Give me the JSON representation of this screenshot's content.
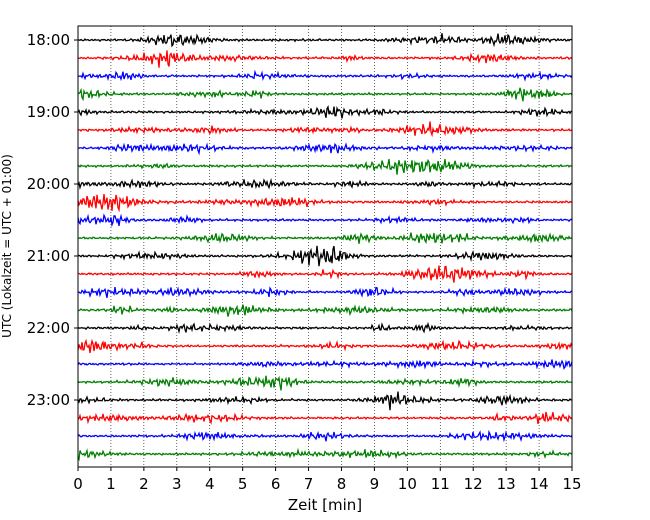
{
  "chart_data": {
    "type": "line",
    "title": "",
    "xlabel": "Zeit  [min]",
    "ylabel": "UTC (Lokalzeit = UTC + 01:00)",
    "xlim": [
      0,
      15
    ],
    "x_ticks": [
      "0",
      "1",
      "2",
      "3",
      "4",
      "5",
      "6",
      "7",
      "8",
      "9",
      "10",
      "11",
      "12",
      "13",
      "14",
      "15"
    ],
    "y_tick_labels": [
      "18:00",
      "19:00",
      "20:00",
      "21:00",
      "22:00",
      "23:00"
    ],
    "trace_interval_minutes": 15,
    "trace_count": 24,
    "trace_colors": [
      "#000000",
      "#ff0000",
      "#0000ff",
      "#007f00"
    ],
    "grid": {
      "vertical": true,
      "style": "dotted"
    },
    "series": [
      {
        "start": "18:00",
        "color": "#000000"
      },
      {
        "start": "18:15",
        "color": "#ff0000"
      },
      {
        "start": "18:30",
        "color": "#0000ff"
      },
      {
        "start": "18:45",
        "color": "#007f00"
      },
      {
        "start": "19:00",
        "color": "#000000"
      },
      {
        "start": "19:15",
        "color": "#ff0000"
      },
      {
        "start": "19:30",
        "color": "#0000ff"
      },
      {
        "start": "19:45",
        "color": "#007f00"
      },
      {
        "start": "20:00",
        "color": "#000000"
      },
      {
        "start": "20:15",
        "color": "#ff0000"
      },
      {
        "start": "20:30",
        "color": "#0000ff"
      },
      {
        "start": "20:45",
        "color": "#007f00"
      },
      {
        "start": "21:00",
        "color": "#000000"
      },
      {
        "start": "21:15",
        "color": "#ff0000"
      },
      {
        "start": "21:30",
        "color": "#0000ff"
      },
      {
        "start": "21:45",
        "color": "#007f00"
      },
      {
        "start": "22:00",
        "color": "#000000"
      },
      {
        "start": "22:15",
        "color": "#ff0000"
      },
      {
        "start": "22:30",
        "color": "#0000ff"
      },
      {
        "start": "22:45",
        "color": "#007f00"
      },
      {
        "start": "23:00",
        "color": "#000000"
      },
      {
        "start": "23:15",
        "color": "#ff0000"
      },
      {
        "start": "23:30",
        "color": "#0000ff"
      },
      {
        "start": "23:45",
        "color": "#007f00"
      }
    ]
  }
}
